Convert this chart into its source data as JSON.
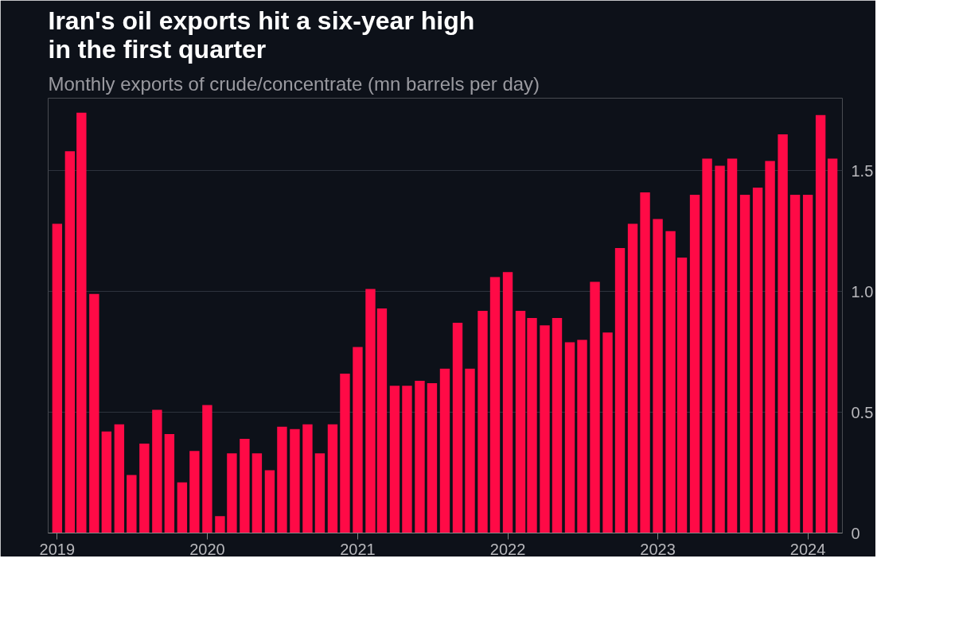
{
  "chart_data": {
    "type": "bar",
    "title": "Iran's oil exports hit a six-year high\nin the first quarter",
    "subtitle": "Monthly exports of crude/concentrate (mn barrels per day)",
    "x": [
      "2019-01",
      "2019-02",
      "2019-03",
      "2019-04",
      "2019-05",
      "2019-06",
      "2019-07",
      "2019-08",
      "2019-09",
      "2019-10",
      "2019-11",
      "2019-12",
      "2020-01",
      "2020-02",
      "2020-03",
      "2020-04",
      "2020-05",
      "2020-06",
      "2020-07",
      "2020-08",
      "2020-09",
      "2020-10",
      "2020-11",
      "2020-12",
      "2021-01",
      "2021-02",
      "2021-03",
      "2021-04",
      "2021-05",
      "2021-06",
      "2021-07",
      "2021-08",
      "2021-09",
      "2021-10",
      "2021-11",
      "2021-12",
      "2022-01",
      "2022-02",
      "2022-03",
      "2022-04",
      "2022-05",
      "2022-06",
      "2022-07",
      "2022-08",
      "2022-09",
      "2022-10",
      "2022-11",
      "2022-12",
      "2023-01",
      "2023-02",
      "2023-03",
      "2023-04",
      "2023-05",
      "2023-06",
      "2023-07",
      "2023-08",
      "2023-09",
      "2023-10",
      "2023-11",
      "2023-12",
      "2024-01",
      "2024-02",
      "2024-03"
    ],
    "values": [
      1.28,
      1.58,
      1.74,
      0.99,
      0.42,
      0.45,
      0.24,
      0.37,
      0.51,
      0.41,
      0.21,
      0.34,
      0.53,
      0.07,
      0.33,
      0.39,
      0.33,
      0.26,
      0.44,
      0.43,
      0.45,
      0.33,
      0.45,
      0.66,
      0.77,
      1.01,
      0.93,
      0.61,
      0.61,
      0.63,
      0.62,
      0.68,
      0.87,
      0.68,
      0.92,
      1.06,
      1.08,
      0.92,
      0.89,
      0.86,
      0.89,
      0.79,
      0.8,
      1.04,
      0.83,
      1.18,
      1.28,
      1.41,
      1.3,
      1.25,
      1.14,
      1.4,
      1.55,
      1.52,
      1.55,
      1.4,
      1.43,
      1.54,
      1.65,
      1.4,
      1.4,
      1.73,
      1.55
    ],
    "color": "#ff0a46",
    "xlim": [
      "2018-12-10",
      "2024-03-25"
    ],
    "xticks": [
      {
        "value": "2019-01",
        "label": "2019"
      },
      {
        "value": "2020-01",
        "label": "2020"
      },
      {
        "value": "2021-01",
        "label": "2021"
      },
      {
        "value": "2022-01",
        "label": "2022"
      },
      {
        "value": "2023-01",
        "label": "2023"
      },
      {
        "value": "2024-01",
        "label": "2024"
      }
    ],
    "ylim": [
      0,
      1.8
    ],
    "yticks": [
      0,
      {
        "value": 0.5,
        "label": "0.5"
      },
      {
        "value": 1.0,
        "label": "1.0"
      },
      {
        "value": 1.5,
        "label": "1.5"
      }
    ],
    "grid": "y"
  }
}
